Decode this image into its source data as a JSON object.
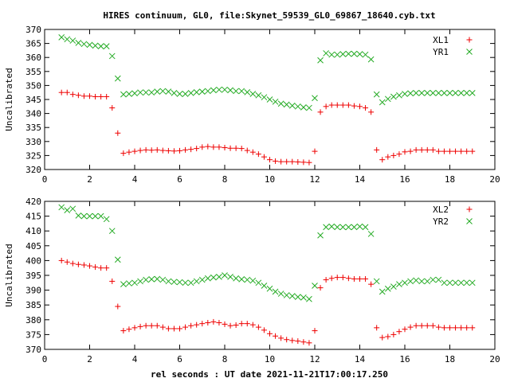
{
  "title": "HIRES continuum, GL0, file:Skynet_59539_GL0_69867_18640.cyb.txt",
  "xlabel": "rel seconds : UT date 2021-11-21T17:00:17.250",
  "colors": {
    "red": "#ee0000",
    "green": "#22aa22"
  },
  "chart_data": [
    {
      "type": "scatter",
      "ylabel": "Uncalibrated",
      "xlim": [
        0,
        20
      ],
      "ylim": [
        320,
        370
      ],
      "xticks": [
        0,
        2,
        4,
        6,
        8,
        10,
        12,
        14,
        16,
        18,
        20
      ],
      "yticks": [
        320,
        325,
        330,
        335,
        340,
        345,
        350,
        355,
        360,
        365,
        370
      ],
      "legend_position": "top-right",
      "series": [
        {
          "name": "XL1",
          "marker": "plus",
          "color": "#ee0000",
          "x": [
            0.75,
            1.0,
            1.25,
            1.5,
            1.75,
            2.0,
            2.25,
            2.5,
            2.75,
            3.0,
            3.25,
            3.5,
            3.75,
            4.0,
            4.25,
            4.5,
            4.75,
            5.0,
            5.25,
            5.5,
            5.75,
            6.0,
            6.25,
            6.5,
            6.75,
            7.0,
            7.25,
            7.5,
            7.75,
            8.0,
            8.25,
            8.5,
            8.75,
            9.0,
            9.25,
            9.5,
            9.75,
            10.0,
            10.25,
            10.5,
            10.75,
            11.0,
            11.25,
            11.5,
            11.75,
            12.0,
            12.25,
            12.5,
            12.75,
            13.0,
            13.25,
            13.5,
            13.75,
            14.0,
            14.25,
            14.5,
            14.75,
            15.0,
            15.25,
            15.5,
            15.75,
            16.0,
            16.25,
            16.5,
            16.75,
            17.0,
            17.25,
            17.5,
            17.75,
            18.0,
            18.25,
            18.5,
            18.75,
            19.0
          ],
          "y": [
            347.5,
            347.5,
            346.8,
            346.5,
            346.2,
            346.2,
            346.0,
            346.0,
            346.0,
            342.0,
            333.0,
            325.8,
            326.2,
            326.5,
            326.8,
            327.0,
            326.9,
            327.0,
            326.8,
            326.7,
            326.6,
            326.7,
            327.0,
            327.2,
            327.5,
            328.0,
            328.2,
            328.0,
            328.0,
            327.8,
            327.6,
            327.6,
            327.5,
            326.8,
            326.2,
            325.5,
            324.5,
            323.5,
            323.0,
            322.8,
            322.8,
            322.8,
            322.7,
            322.6,
            322.5,
            326.5,
            340.5,
            342.5,
            343.0,
            343.0,
            343.0,
            343.0,
            342.7,
            342.5,
            342.0,
            340.5,
            327.0,
            323.5,
            324.5,
            325.0,
            325.5,
            326.3,
            326.5,
            327.0,
            327.0,
            327.0,
            327.0,
            326.5,
            326.5,
            326.5,
            326.5,
            326.5,
            326.5,
            326.5
          ]
        },
        {
          "name": "YR1",
          "marker": "cross",
          "color": "#22aa22",
          "x": [
            0.75,
            1.0,
            1.25,
            1.5,
            1.75,
            2.0,
            2.25,
            2.5,
            2.75,
            3.0,
            3.25,
            3.5,
            3.75,
            4.0,
            4.25,
            4.5,
            4.75,
            5.0,
            5.25,
            5.5,
            5.75,
            6.0,
            6.25,
            6.5,
            6.75,
            7.0,
            7.25,
            7.5,
            7.75,
            8.0,
            8.25,
            8.5,
            8.75,
            9.0,
            9.25,
            9.5,
            9.75,
            10.0,
            10.25,
            10.5,
            10.75,
            11.0,
            11.25,
            11.5,
            11.75,
            12.0,
            12.25,
            12.5,
            12.75,
            13.0,
            13.25,
            13.5,
            13.75,
            14.0,
            14.25,
            14.5,
            14.75,
            15.0,
            15.25,
            15.5,
            15.75,
            16.0,
            16.25,
            16.5,
            16.75,
            17.0,
            17.25,
            17.5,
            17.75,
            18.0,
            18.25,
            18.5,
            18.75,
            19.0
          ],
          "y": [
            367.2,
            366.5,
            366.0,
            365.2,
            364.8,
            364.5,
            364.2,
            364.0,
            364.0,
            360.5,
            352.5,
            346.8,
            347.0,
            347.2,
            347.5,
            347.5,
            347.5,
            347.8,
            348.0,
            347.8,
            347.3,
            347.0,
            347.0,
            347.3,
            347.6,
            347.8,
            348.0,
            348.3,
            348.5,
            348.5,
            348.3,
            348.0,
            348.0,
            347.6,
            347.0,
            346.5,
            345.8,
            345.0,
            344.2,
            343.5,
            343.2,
            342.8,
            342.5,
            342.2,
            342.0,
            345.5,
            359.0,
            361.5,
            361.0,
            361.0,
            361.2,
            361.3,
            361.3,
            361.2,
            361.0,
            359.3,
            346.8,
            344.0,
            345.2,
            346.0,
            346.5,
            347.0,
            347.2,
            347.3,
            347.3,
            347.3,
            347.3,
            347.3,
            347.3,
            347.3,
            347.3,
            347.3,
            347.3,
            347.3
          ]
        }
      ]
    },
    {
      "type": "scatter",
      "ylabel": "Uncalibrated",
      "xlim": [
        0,
        20
      ],
      "ylim": [
        370,
        420
      ],
      "xticks": [
        0,
        2,
        4,
        6,
        8,
        10,
        12,
        14,
        16,
        18,
        20
      ],
      "yticks": [
        370,
        375,
        380,
        385,
        390,
        395,
        400,
        405,
        410,
        415,
        420
      ],
      "legend_position": "top-right",
      "series": [
        {
          "name": "XL2",
          "marker": "plus",
          "color": "#ee0000",
          "x": [
            0.75,
            1.0,
            1.25,
            1.5,
            1.75,
            2.0,
            2.25,
            2.5,
            2.75,
            3.0,
            3.25,
            3.5,
            3.75,
            4.0,
            4.25,
            4.5,
            4.75,
            5.0,
            5.25,
            5.5,
            5.75,
            6.0,
            6.25,
            6.5,
            6.75,
            7.0,
            7.25,
            7.5,
            7.75,
            8.0,
            8.25,
            8.5,
            8.75,
            9.0,
            9.25,
            9.5,
            9.75,
            10.0,
            10.25,
            10.5,
            10.75,
            11.0,
            11.25,
            11.5,
            11.75,
            12.0,
            12.25,
            12.5,
            12.75,
            13.0,
            13.25,
            13.5,
            13.75,
            14.0,
            14.25,
            14.5,
            14.75,
            15.0,
            15.25,
            15.5,
            15.75,
            16.0,
            16.25,
            16.5,
            16.75,
            17.0,
            17.25,
            17.5,
            17.75,
            18.0,
            18.25,
            18.5,
            18.75,
            19.0
          ],
          "y": [
            400.0,
            399.5,
            399.0,
            398.7,
            398.5,
            398.2,
            397.8,
            397.5,
            397.5,
            393.0,
            384.5,
            376.3,
            376.8,
            377.3,
            377.7,
            378.0,
            378.0,
            378.0,
            377.5,
            377.0,
            377.0,
            377.0,
            377.5,
            378.0,
            378.3,
            378.7,
            379.0,
            379.3,
            379.0,
            378.5,
            378.0,
            378.2,
            378.7,
            378.7,
            378.3,
            377.5,
            376.5,
            375.3,
            374.5,
            373.8,
            373.3,
            373.0,
            372.8,
            372.5,
            372.2,
            376.3,
            390.8,
            393.5,
            394.0,
            394.3,
            394.3,
            394.0,
            393.8,
            393.8,
            393.8,
            392.0,
            377.3,
            374.0,
            374.3,
            375.0,
            376.0,
            376.8,
            377.5,
            378.0,
            378.0,
            378.0,
            378.0,
            377.5,
            377.3,
            377.3,
            377.3,
            377.3,
            377.3,
            377.3
          ]
        },
        {
          "name": "YR2",
          "marker": "cross",
          "color": "#22aa22",
          "x": [
            0.75,
            1.0,
            1.25,
            1.5,
            1.75,
            2.0,
            2.25,
            2.5,
            2.75,
            3.0,
            3.25,
            3.5,
            3.75,
            4.0,
            4.25,
            4.5,
            4.75,
            5.0,
            5.25,
            5.5,
            5.75,
            6.0,
            6.25,
            6.5,
            6.75,
            7.0,
            7.25,
            7.5,
            7.75,
            8.0,
            8.25,
            8.5,
            8.75,
            9.0,
            9.25,
            9.5,
            9.75,
            10.0,
            10.25,
            10.5,
            10.75,
            11.0,
            11.25,
            11.5,
            11.75,
            12.0,
            12.25,
            12.5,
            12.75,
            13.0,
            13.25,
            13.5,
            13.75,
            14.0,
            14.25,
            14.5,
            14.75,
            15.0,
            15.25,
            15.5,
            15.75,
            16.0,
            16.25,
            16.5,
            16.75,
            17.0,
            17.25,
            17.5,
            17.75,
            18.0,
            18.25,
            18.5,
            18.75,
            19.0
          ],
          "y": [
            418.0,
            417.0,
            417.5,
            415.2,
            415.0,
            415.0,
            415.0,
            415.0,
            414.0,
            410.0,
            400.3,
            392.0,
            392.3,
            392.5,
            393.0,
            393.5,
            393.7,
            393.8,
            393.5,
            393.0,
            392.8,
            392.7,
            392.5,
            392.5,
            393.0,
            393.5,
            394.0,
            394.3,
            394.5,
            395.0,
            394.5,
            394.0,
            393.7,
            393.5,
            393.2,
            392.5,
            391.5,
            390.5,
            389.5,
            388.8,
            388.3,
            388.0,
            387.7,
            387.5,
            387.0,
            391.5,
            408.5,
            411.3,
            411.5,
            411.3,
            411.3,
            411.3,
            411.3,
            411.5,
            411.3,
            409.0,
            393.0,
            389.5,
            390.5,
            391.2,
            392.0,
            392.5,
            393.0,
            393.3,
            393.0,
            393.0,
            393.5,
            393.5,
            392.5,
            392.5,
            392.5,
            392.5,
            392.5,
            392.5
          ]
        }
      ]
    }
  ]
}
